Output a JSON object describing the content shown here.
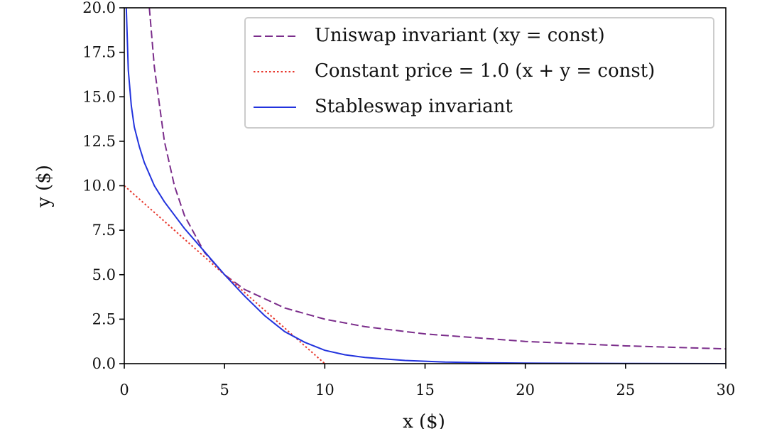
{
  "chart_data": {
    "type": "line",
    "xlabel": "x ($)",
    "ylabel": "y ($)",
    "xlim": [
      0,
      30
    ],
    "ylim": [
      0,
      20
    ],
    "xticks": [
      0,
      5,
      10,
      15,
      20,
      25,
      30
    ],
    "yticks": [
      {
        "value": 0,
        "label": "0.0"
      },
      {
        "value": 2.5,
        "label": "2.5"
      },
      {
        "value": 5,
        "label": "5.0"
      },
      {
        "value": 7.5,
        "label": "7.5"
      },
      {
        "value": 10,
        "label": "10.0"
      },
      {
        "value": 12.5,
        "label": "12.5"
      },
      {
        "value": 15,
        "label": "15.0"
      },
      {
        "value": 17.5,
        "label": "17.5"
      },
      {
        "value": 20,
        "label": "20.0"
      }
    ],
    "legend": "upper right",
    "series": [
      {
        "name": "Uniswap invariant (xy = const)",
        "color": "#7b2d8b",
        "dash": "dashed",
        "x": [
          1.25,
          1.5,
          2,
          2.5,
          3,
          4,
          5,
          6,
          8,
          10,
          12,
          15,
          20,
          25,
          30
        ],
        "values": [
          20,
          16.67,
          12.5,
          10,
          8.33,
          6.25,
          5,
          4.17,
          3.13,
          2.5,
          2.08,
          1.67,
          1.25,
          1,
          0.83
        ]
      },
      {
        "name": "Constant price = 1.0 (x + y = const)",
        "color": "#e8372c",
        "dash": "dotted",
        "x": [
          0,
          10
        ],
        "values": [
          10,
          0
        ]
      },
      {
        "name": "Stableswap invariant",
        "color": "#2233dd",
        "dash": "solid",
        "x": [
          0.1,
          0.2,
          0.35,
          0.5,
          0.75,
          1,
          1.5,
          2,
          3,
          4,
          5,
          6,
          7,
          8,
          9,
          10,
          11,
          12,
          14,
          16,
          18,
          20,
          25,
          30
        ],
        "values": [
          20,
          16.5,
          14.5,
          13.3,
          12.2,
          11.3,
          10,
          9.1,
          7.6,
          6.3,
          5,
          3.8,
          2.7,
          1.8,
          1.2,
          0.75,
          0.5,
          0.35,
          0.18,
          0.09,
          0.05,
          0.03,
          0.01,
          0
        ]
      }
    ]
  }
}
